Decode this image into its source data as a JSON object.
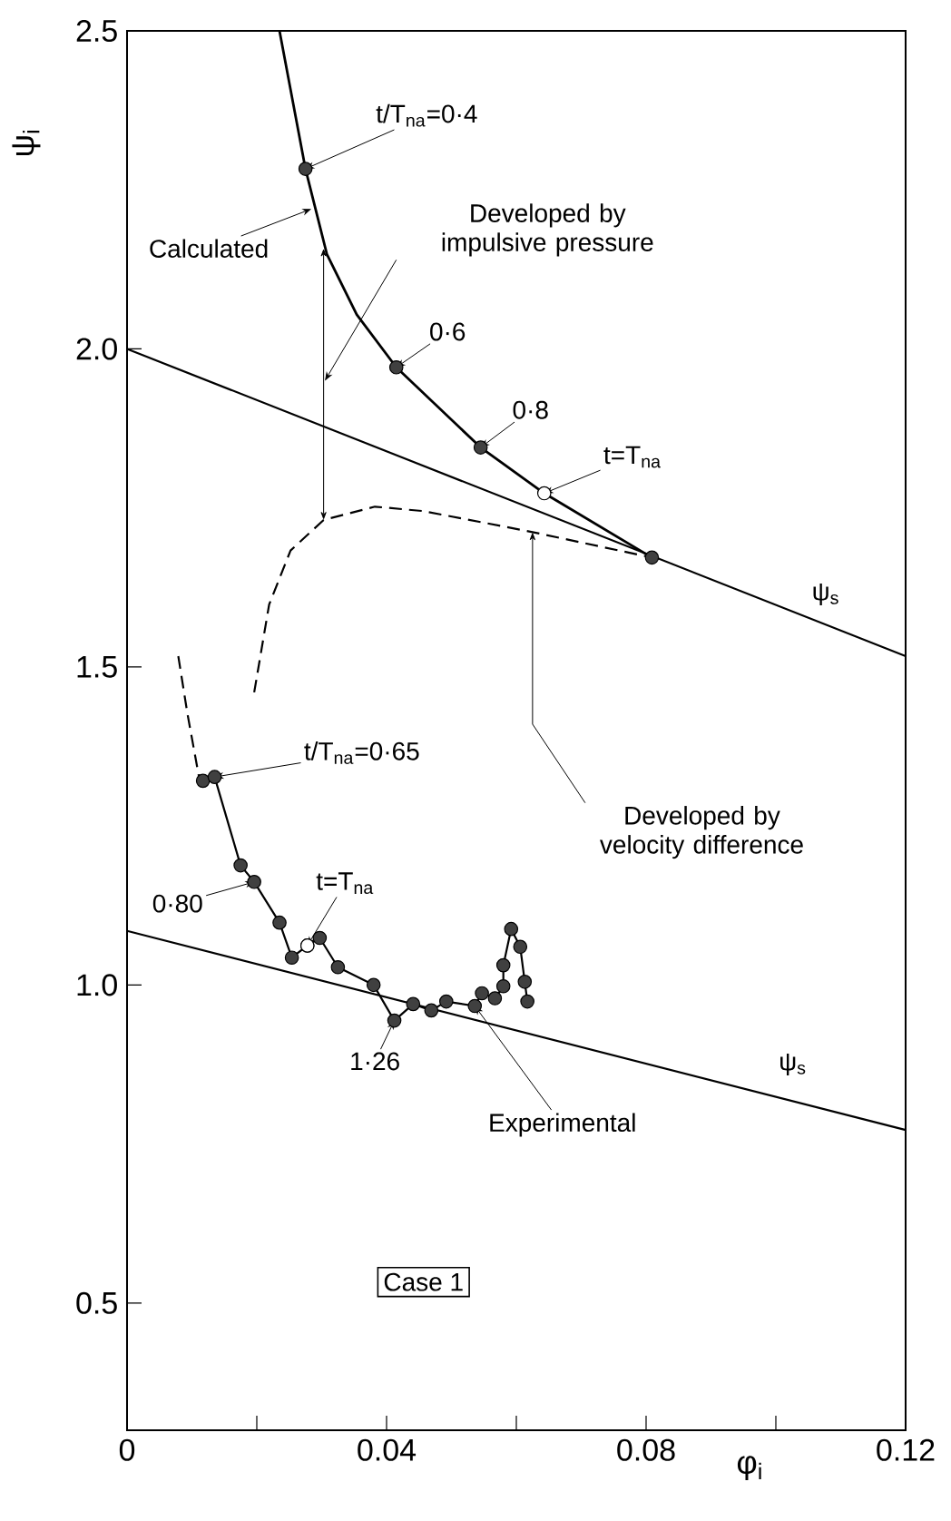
{
  "chart_data": {
    "type": "line",
    "xlabel": "φ$_{i}$",
    "ylabel": "ψ$_{i}$",
    "xlim": [
      0,
      0.12
    ],
    "ylim": [
      0.3,
      2.5
    ],
    "xticks": [
      0,
      {
        "value": 0.02,
        "label": null
      },
      0.04,
      {
        "value": 0.06,
        "label": null
      },
      0.08,
      {
        "value": 0.1,
        "label": null
      },
      0.12
    ],
    "yticks": [
      0.5,
      {
        "value": 1,
        "label": "1.0"
      },
      1.5,
      {
        "value": 2,
        "label": "2.0"
      },
      2.5
    ],
    "series": [
      {
        "type": "line",
        "marker": "none",
        "line_style": "solid",
        "color": "#000000",
        "x": [
          0.0235,
          0.0275,
          0.0308,
          0.0354,
          0.0415,
          0.0545,
          0.0643,
          0.0809
        ],
        "values": [
          2.5,
          2.283,
          2.149,
          2.054,
          1.971,
          1.845,
          1.773,
          1.672
        ]
      },
      {
        "type": "scatter",
        "marker": "circle",
        "color": "#404040",
        "x": [
          0.0275,
          0.0415,
          0.0545,
          0.0809
        ],
        "values": [
          2.283,
          1.971,
          1.845,
          1.672
        ]
      },
      {
        "type": "scatter",
        "marker": "circle",
        "color": "#ffffff",
        "x": [
          0.0643
        ],
        "values": [
          1.773
        ]
      },
      {
        "type": "line",
        "marker": "none",
        "line_style": "solid",
        "color": "#000000",
        "x": [
          0,
          0.12
        ],
        "values": [
          2.0,
          1.517
        ]
      },
      {
        "type": "line",
        "marker": "none",
        "line_style": "dashed",
        "color": "#000000",
        "x": [
          0.0196,
          0.0219,
          0.0252,
          0.0303,
          0.0382,
          0.0457,
          0.0625,
          0.0809
        ],
        "values": [
          1.46,
          1.598,
          1.683,
          1.731,
          1.752,
          1.745,
          1.712,
          1.672
        ]
      },
      {
        "type": "line",
        "marker": "none",
        "line_style": "solid",
        "color": "#000000",
        "x": [
          0,
          0.12
        ],
        "values": [
          1.085,
          0.772
        ]
      },
      {
        "type": "line",
        "marker": "none",
        "line_style": "dashed",
        "color": "#000000",
        "x": [
          0.0079,
          0.0093,
          0.0105,
          0.0112
        ],
        "values": [
          1.517,
          1.427,
          1.36,
          1.321
        ]
      },
      {
        "type": "line",
        "marker": "circle",
        "line_style": "solid",
        "color": "#404040",
        "x": [
          0.0117,
          0.0135,
          0.0175,
          0.0196,
          0.0235,
          0.0254,
          0.0278,
          0.0297,
          0.0325,
          0.038,
          0.0412,
          0.0441,
          0.0469,
          0.0492,
          0.0536,
          0.0547,
          0.0567,
          0.058,
          0.058,
          0.0592,
          0.0606,
          0.0613,
          0.0617
        ],
        "values": [
          1.321,
          1.327,
          1.188,
          1.162,
          1.098,
          1.043,
          1.062,
          1.074,
          1.028,
          1.0,
          0.944,
          0.97,
          0.96,
          0.974,
          0.967,
          0.987,
          0.979,
          0.998,
          1.031,
          1.088,
          1.06,
          1.005,
          0.974
        ]
      },
      {
        "type": "scatter",
        "marker": "circle",
        "color": "#ffffff",
        "x": [
          0.0278
        ],
        "values": [
          1.062
        ]
      }
    ],
    "annotations": [
      {
        "text": "t/T$_{na}$=0·4",
        "x": 0.0275,
        "y": 2.283
      },
      {
        "text": "Calculated",
        "x": 0.0284,
        "y": 2.22
      },
      "Developed by impulsive pressure",
      {
        "text": "0·6",
        "x": 0.0415,
        "y": 1.971
      },
      {
        "text": "0·8",
        "x": 0.0545,
        "y": 1.845
      },
      {
        "text": "t=T$_{na}$",
        "x": 0.0643,
        "y": 1.773
      },
      {
        "text": "ψ$_{s}$",
        "x": 0.1077,
        "y": 1.567
      },
      {
        "text": "Developed by velocity difference",
        "x": 0.0625,
        "y": 1.712
      },
      {
        "text": "t/T$_{na}$=0·65",
        "x": 0.0135,
        "y": 1.327
      },
      {
        "text": "0·80",
        "x": 0.0196,
        "y": 1.162
      },
      {
        "text": "t=T$_{na}$",
        "x": 0.0278,
        "y": 1.062
      },
      {
        "text": "1·26",
        "x": 0.0412,
        "y": 0.944
      },
      {
        "text": "Experimental",
        "x": 0.0536,
        "y": 0.967
      },
      {
        "text": "ψ$_{s}$",
        "x": 0.1026,
        "y": 0.817
      },
      "Case 1"
    ]
  }
}
